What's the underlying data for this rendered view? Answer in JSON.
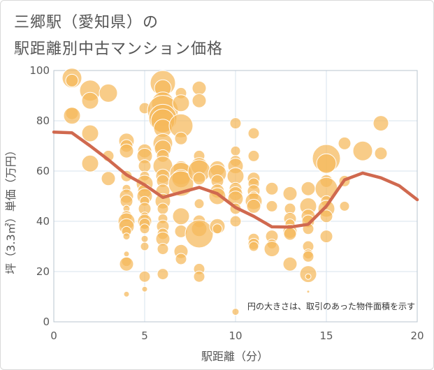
{
  "header": {
    "title_line1": "三郷駅（愛知県）の",
    "title_line2": "駅距離別中古マンション価格"
  },
  "colors": {
    "bubble_fill": "#f5b95a",
    "bubble_stroke": "#ffffff",
    "line": "#d0694f",
    "grid": "#d7e3ee",
    "plot_border": "#b8c4cf"
  },
  "chart_data": {
    "type": "scatter",
    "xlabel": "駅距離（分）",
    "ylabel": "坪（3.3㎡）単価（万円）",
    "note": "円の大きさは、取引のあった物件面積を示す",
    "xlim": [
      0,
      20
    ],
    "ylim": [
      0,
      100
    ],
    "xticks": [
      0,
      5,
      10,
      15,
      20
    ],
    "yticks": [
      0,
      20,
      40,
      60,
      80,
      100
    ],
    "grid": true,
    "bubbles": [
      {
        "x": 1,
        "y": 97,
        "s": 14
      },
      {
        "x": 1,
        "y": 96,
        "s": 9
      },
      {
        "x": 1,
        "y": 83,
        "s": 9
      },
      {
        "x": 1,
        "y": 82,
        "s": 12
      },
      {
        "x": 2,
        "y": 92,
        "s": 15
      },
      {
        "x": 2,
        "y": 88,
        "s": 12
      },
      {
        "x": 2,
        "y": 75,
        "s": 12
      },
      {
        "x": 2,
        "y": 63,
        "s": 12
      },
      {
        "x": 3,
        "y": 91,
        "s": 13
      },
      {
        "x": 3,
        "y": 66,
        "s": 8
      },
      {
        "x": 3,
        "y": 57,
        "s": 10
      },
      {
        "x": 4,
        "y": 72,
        "s": 11
      },
      {
        "x": 4,
        "y": 70,
        "s": 9
      },
      {
        "x": 4,
        "y": 68,
        "s": 10
      },
      {
        "x": 4,
        "y": 58,
        "s": 8
      },
      {
        "x": 4,
        "y": 53,
        "s": 6
      },
      {
        "x": 4,
        "y": 50,
        "s": 10
      },
      {
        "x": 4,
        "y": 48,
        "s": 9
      },
      {
        "x": 4,
        "y": 45,
        "s": 5
      },
      {
        "x": 4,
        "y": 42,
        "s": 8
      },
      {
        "x": 4,
        "y": 40,
        "s": 12
      },
      {
        "x": 4,
        "y": 38,
        "s": 11
      },
      {
        "x": 4,
        "y": 36,
        "s": 7
      },
      {
        "x": 4,
        "y": 34,
        "s": 5
      },
      {
        "x": 4,
        "y": 27,
        "s": 4
      },
      {
        "x": 4,
        "y": 24,
        "s": 7
      },
      {
        "x": 4,
        "y": 23,
        "s": 10
      },
      {
        "x": 4,
        "y": 11,
        "s": 4
      },
      {
        "x": 5,
        "y": 85,
        "s": 8
      },
      {
        "x": 5,
        "y": 68,
        "s": 10
      },
      {
        "x": 5,
        "y": 66,
        "s": 11
      },
      {
        "x": 5,
        "y": 62,
        "s": 9
      },
      {
        "x": 5,
        "y": 58,
        "s": 7
      },
      {
        "x": 5,
        "y": 55,
        "s": 12
      },
      {
        "x": 5,
        "y": 52,
        "s": 10
      },
      {
        "x": 5,
        "y": 50,
        "s": 11
      },
      {
        "x": 5,
        "y": 48,
        "s": 7
      },
      {
        "x": 5,
        "y": 45,
        "s": 9
      },
      {
        "x": 5,
        "y": 42,
        "s": 6
      },
      {
        "x": 5,
        "y": 40,
        "s": 10
      },
      {
        "x": 5,
        "y": 39,
        "s": 8
      },
      {
        "x": 5,
        "y": 37,
        "s": 7
      },
      {
        "x": 5,
        "y": 33,
        "s": 5
      },
      {
        "x": 5,
        "y": 30,
        "s": 6
      },
      {
        "x": 5,
        "y": 18,
        "s": 8
      },
      {
        "x": 5,
        "y": 13,
        "s": 4
      },
      {
        "x": 6,
        "y": 95,
        "s": 18
      },
      {
        "x": 6,
        "y": 93,
        "s": 12
      },
      {
        "x": 6,
        "y": 87,
        "s": 16
      },
      {
        "x": 6,
        "y": 84,
        "s": 22
      },
      {
        "x": 6,
        "y": 81,
        "s": 20
      },
      {
        "x": 6,
        "y": 80,
        "s": 17
      },
      {
        "x": 6,
        "y": 77,
        "s": 13
      },
      {
        "x": 6,
        "y": 71,
        "s": 14
      },
      {
        "x": 6,
        "y": 69,
        "s": 12
      },
      {
        "x": 6,
        "y": 66,
        "s": 9
      },
      {
        "x": 6,
        "y": 62,
        "s": 14
      },
      {
        "x": 6,
        "y": 58,
        "s": 10
      },
      {
        "x": 6,
        "y": 56,
        "s": 9
      },
      {
        "x": 6,
        "y": 52,
        "s": 10
      },
      {
        "x": 6,
        "y": 48,
        "s": 11
      },
      {
        "x": 6,
        "y": 45,
        "s": 8
      },
      {
        "x": 6,
        "y": 41,
        "s": 7
      },
      {
        "x": 6,
        "y": 38,
        "s": 9
      },
      {
        "x": 6,
        "y": 35,
        "s": 8
      },
      {
        "x": 6,
        "y": 33,
        "s": 10
      },
      {
        "x": 6,
        "y": 29,
        "s": 8
      },
      {
        "x": 6,
        "y": 19,
        "s": 8
      },
      {
        "x": 7,
        "y": 91,
        "s": 8
      },
      {
        "x": 7,
        "y": 87,
        "s": 12
      },
      {
        "x": 7,
        "y": 78,
        "s": 17
      },
      {
        "x": 7,
        "y": 73,
        "s": 9
      },
      {
        "x": 7,
        "y": 61,
        "s": 11
      },
      {
        "x": 7,
        "y": 59,
        "s": 16
      },
      {
        "x": 7,
        "y": 57,
        "s": 13
      },
      {
        "x": 7,
        "y": 55,
        "s": 18
      },
      {
        "x": 7,
        "y": 42,
        "s": 12
      },
      {
        "x": 7,
        "y": 36,
        "s": 9
      },
      {
        "x": 7,
        "y": 28,
        "s": 10
      },
      {
        "x": 7,
        "y": 25,
        "s": 8
      },
      {
        "x": 8,
        "y": 93,
        "s": 10
      },
      {
        "x": 8,
        "y": 88,
        "s": 10
      },
      {
        "x": 8,
        "y": 66,
        "s": 8
      },
      {
        "x": 8,
        "y": 62,
        "s": 12
      },
      {
        "x": 8,
        "y": 60,
        "s": 16
      },
      {
        "x": 8,
        "y": 57,
        "s": 9
      },
      {
        "x": 8,
        "y": 47,
        "s": 7
      },
      {
        "x": 8,
        "y": 40,
        "s": 9
      },
      {
        "x": 8,
        "y": 37,
        "s": 11
      },
      {
        "x": 8,
        "y": 35,
        "s": 20
      },
      {
        "x": 8,
        "y": 21,
        "s": 8
      },
      {
        "x": 8,
        "y": 18,
        "s": 8
      },
      {
        "x": 9,
        "y": 61,
        "s": 11
      },
      {
        "x": 9,
        "y": 59,
        "s": 13
      },
      {
        "x": 9,
        "y": 56,
        "s": 9
      },
      {
        "x": 9,
        "y": 52,
        "s": 10
      },
      {
        "x": 9,
        "y": 50,
        "s": 12
      },
      {
        "x": 9,
        "y": 38,
        "s": 11
      },
      {
        "x": 9,
        "y": 37,
        "s": 7
      },
      {
        "x": 10,
        "y": 79,
        "s": 8
      },
      {
        "x": 10,
        "y": 68,
        "s": 7
      },
      {
        "x": 10,
        "y": 64,
        "s": 8
      },
      {
        "x": 10,
        "y": 62,
        "s": 11
      },
      {
        "x": 10,
        "y": 58,
        "s": 12
      },
      {
        "x": 10,
        "y": 53,
        "s": 9
      },
      {
        "x": 10,
        "y": 51,
        "s": 10
      },
      {
        "x": 10,
        "y": 49,
        "s": 11
      },
      {
        "x": 10,
        "y": 45,
        "s": 8
      },
      {
        "x": 10,
        "y": 40,
        "s": 8
      },
      {
        "x": 10,
        "y": 4,
        "s": 5
      },
      {
        "x": 11,
        "y": 75,
        "s": 8
      },
      {
        "x": 11,
        "y": 66,
        "s": 8
      },
      {
        "x": 11,
        "y": 57,
        "s": 9
      },
      {
        "x": 11,
        "y": 55,
        "s": 8
      },
      {
        "x": 11,
        "y": 52,
        "s": 9
      },
      {
        "x": 11,
        "y": 50,
        "s": 7
      },
      {
        "x": 11,
        "y": 48,
        "s": 12
      },
      {
        "x": 11,
        "y": 46,
        "s": 10
      },
      {
        "x": 11,
        "y": 33,
        "s": 8
      },
      {
        "x": 11,
        "y": 31,
        "s": 8
      },
      {
        "x": 11,
        "y": 30,
        "s": 7
      },
      {
        "x": 12,
        "y": 53,
        "s": 9
      },
      {
        "x": 12,
        "y": 46,
        "s": 8
      },
      {
        "x": 12,
        "y": 34,
        "s": 9
      },
      {
        "x": 12,
        "y": 31,
        "s": 7
      },
      {
        "x": 12,
        "y": 29,
        "s": 11
      },
      {
        "x": 13,
        "y": 51,
        "s": 10
      },
      {
        "x": 13,
        "y": 45,
        "s": 8
      },
      {
        "x": 13,
        "y": 41,
        "s": 9
      },
      {
        "x": 13,
        "y": 39,
        "s": 7
      },
      {
        "x": 13,
        "y": 36,
        "s": 10
      },
      {
        "x": 13,
        "y": 35,
        "s": 9
      },
      {
        "x": 13,
        "y": 23,
        "s": 10
      },
      {
        "x": 14,
        "y": 53,
        "s": 10
      },
      {
        "x": 14,
        "y": 46,
        "s": 12
      },
      {
        "x": 14,
        "y": 42,
        "s": 10
      },
      {
        "x": 14,
        "y": 40,
        "s": 9
      },
      {
        "x": 14,
        "y": 37,
        "s": 8
      },
      {
        "x": 14,
        "y": 30,
        "s": 8
      },
      {
        "x": 14,
        "y": 27,
        "s": 7
      },
      {
        "x": 14,
        "y": 26,
        "s": 8
      },
      {
        "x": 14,
        "y": 19,
        "s": 12
      },
      {
        "x": 14,
        "y": 18,
        "s": 4
      },
      {
        "x": 14,
        "y": 12,
        "s": 2
      },
      {
        "x": 15,
        "y": 65,
        "s": 20
      },
      {
        "x": 15,
        "y": 63,
        "s": 14
      },
      {
        "x": 15,
        "y": 56,
        "s": 9
      },
      {
        "x": 15,
        "y": 53,
        "s": 16
      },
      {
        "x": 15,
        "y": 48,
        "s": 8
      },
      {
        "x": 15,
        "y": 45,
        "s": 12
      },
      {
        "x": 15,
        "y": 42,
        "s": 9
      },
      {
        "x": 15,
        "y": 34,
        "s": 9
      },
      {
        "x": 16,
        "y": 71,
        "s": 9
      },
      {
        "x": 16,
        "y": 56,
        "s": 8
      },
      {
        "x": 16,
        "y": 46,
        "s": 7
      },
      {
        "x": 17,
        "y": 68,
        "s": 14
      },
      {
        "x": 18,
        "y": 79,
        "s": 11
      },
      {
        "x": 18,
        "y": 67,
        "s": 9
      }
    ],
    "trend": {
      "name": "",
      "x": [
        0,
        1,
        2,
        3,
        4,
        5,
        6,
        7,
        8,
        9,
        10,
        11,
        12,
        13,
        14,
        15,
        16,
        17,
        18,
        19,
        20
      ],
      "y": [
        75.5,
        75.2,
        70,
        64.5,
        58.5,
        54.5,
        49.5,
        51.5,
        53.5,
        51,
        45.5,
        42,
        37.8,
        37.7,
        38.8,
        46,
        56.5,
        59.2,
        57.3,
        54.2,
        48.6
      ]
    }
  }
}
